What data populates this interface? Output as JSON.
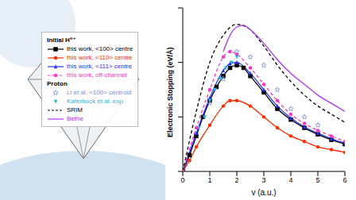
{
  "chart_data": {
    "type": "line",
    "x_label": "v (a.u.)",
    "y_label": "Electronic Stopping (eV/Å)",
    "xlim": [
      0,
      6
    ],
    "xticks": [
      0,
      1,
      2,
      3,
      4,
      5,
      6
    ],
    "ylim": [
      0,
      30
    ],
    "yticks": [
      0,
      10,
      20,
      30
    ],
    "tick_labels": "x",
    "grid": false,
    "legend": "top-right",
    "series": [
      {
        "group": "Initial H⁰⁺",
        "name": "this work, <100> centre",
        "type": "line",
        "color": "#000000",
        "marker": "square",
        "line_style": "solid",
        "x": [
          0,
          0.25,
          0.5,
          0.75,
          1,
          1.25,
          1.5,
          1.75,
          2,
          2.25,
          2.5,
          3,
          3.5,
          4,
          4.5,
          5,
          5.5,
          6
        ],
        "values": [
          0,
          3,
          6.5,
          10,
          13,
          15.5,
          17.5,
          19,
          19.5,
          19,
          17.5,
          14.5,
          11.5,
          9.5,
          8,
          6.8,
          5.8,
          5
        ]
      },
      {
        "group": "Initial H⁰⁺",
        "name": "this work, <110> centre",
        "type": "line",
        "color": "#ff2a00",
        "marker": "circle",
        "line_style": "solid",
        "x": [
          0,
          0.25,
          0.5,
          1,
          1.5,
          1.75,
          2,
          2.5,
          3,
          3.5,
          4,
          4.5,
          5,
          5.5,
          6
        ],
        "values": [
          0,
          2,
          4.5,
          8.5,
          12,
          13,
          13,
          12,
          10,
          8,
          6.5,
          5.5,
          4.5,
          4,
          3.5
        ]
      },
      {
        "group": "Initial H⁰⁺",
        "name": "this work, <111> centre",
        "type": "line",
        "color": "#2233ff",
        "marker": "triangle",
        "line_style": "solid",
        "x": [
          0,
          0.5,
          1,
          1.5,
          1.75,
          2,
          2.5,
          3,
          3.5,
          4,
          4.5,
          5,
          5.5,
          6
        ],
        "values": [
          0,
          7,
          13.5,
          18.5,
          19.8,
          20,
          18,
          15,
          12,
          9.8,
          8.2,
          7,
          6,
          5.2
        ]
      },
      {
        "group": "Initial H⁰⁺",
        "name": "this work, off-channel",
        "type": "line",
        "color": "#ff33cc",
        "marker": "circle",
        "line_style": "dashed",
        "x": [
          0,
          0.5,
          1,
          1.5,
          1.75,
          2,
          2.5,
          3,
          3.5,
          4,
          4.5,
          5,
          5.5,
          6
        ],
        "values": [
          0,
          8,
          15,
          21,
          22,
          21.5,
          19,
          16,
          13,
          10.5,
          8.8,
          7.5,
          6.5,
          5.5
        ]
      },
      {
        "group": "Proton",
        "name": "Li et al. <100> centroid",
        "type": "scatter",
        "color": "#7b8fe0",
        "marker": "star",
        "line_style": "none",
        "x": [
          1,
          1.5,
          2,
          2.5,
          3,
          3.5,
          4,
          4.5,
          5
        ],
        "values": [
          12.5,
          17,
          22,
          21,
          19.5,
          15,
          11.5,
          10,
          8.5
        ]
      },
      {
        "group": "Proton",
        "name": "Kaferbock et al. exp",
        "type": "scatter",
        "color": "#22b8dd",
        "marker": "triangle-down",
        "line_style": "none",
        "x": [
          0.6,
          0.8,
          1,
          1.2,
          1.4,
          1.6,
          1.8,
          2
        ],
        "values": [
          8,
          10,
          13,
          15,
          17,
          19,
          20,
          21
        ]
      },
      {
        "group": "Proton",
        "name": "SRIM",
        "type": "line",
        "color": "#000000",
        "marker": "none",
        "line_style": "dashed",
        "x": [
          0,
          0.5,
          1,
          1.5,
          2,
          2.5,
          3,
          3.5,
          4,
          4.5,
          5,
          5.5,
          6
        ],
        "values": [
          0,
          11,
          20,
          25,
          27,
          26,
          23,
          19.5,
          16.5,
          14,
          12,
          10.5,
          9
        ]
      },
      {
        "group": "Proton",
        "name": "Bethe",
        "type": "line",
        "color": "#b030ff",
        "marker": "none",
        "line_style": "solid",
        "x": [
          1.5,
          1.75,
          2,
          2.25,
          2.5,
          3,
          3.5,
          4,
          4.5,
          5,
          5.5,
          6
        ],
        "values": [
          22,
          25,
          26.5,
          26.8,
          26,
          23.5,
          20.5,
          18,
          16,
          14,
          12.5,
          11
        ]
      }
    ]
  }
}
